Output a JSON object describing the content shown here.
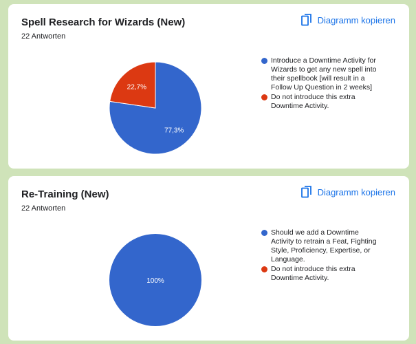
{
  "cards": [
    {
      "title": "Spell Research for Wizards (New)",
      "subtitle": "22 Antworten",
      "copy_label": "Diagramm kopieren",
      "chart_data": {
        "type": "pie",
        "title": "Spell Research for Wizards (New)",
        "slices": [
          {
            "label": "Introduce a Downtime Activity for Wizards to get any new spell into their spellbook [will result in a Follow Up Question in 2 weeks]",
            "value": 77.3,
            "pct_label": "77,3%",
            "color": "#3366cc"
          },
          {
            "label": "Do not introduce this extra Downtime Activity.",
            "value": 22.7,
            "pct_label": "22,7%",
            "color": "#dc3912"
          }
        ]
      }
    },
    {
      "title": "Re-Training (New)",
      "subtitle": "22 Antworten",
      "copy_label": "Diagramm kopieren",
      "chart_data": {
        "type": "pie",
        "title": "Re-Training (New)",
        "slices": [
          {
            "label": "Should we add a Downtime Activity to retrain a Feat, Fighting Style, Proficiency, Expertise, or Language.",
            "value": 100,
            "pct_label": "100%",
            "color": "#3366cc"
          },
          {
            "label": "Do not introduce this extra Downtime Activity.",
            "value": 0,
            "pct_label": "",
            "color": "#dc3912"
          }
        ]
      }
    }
  ]
}
